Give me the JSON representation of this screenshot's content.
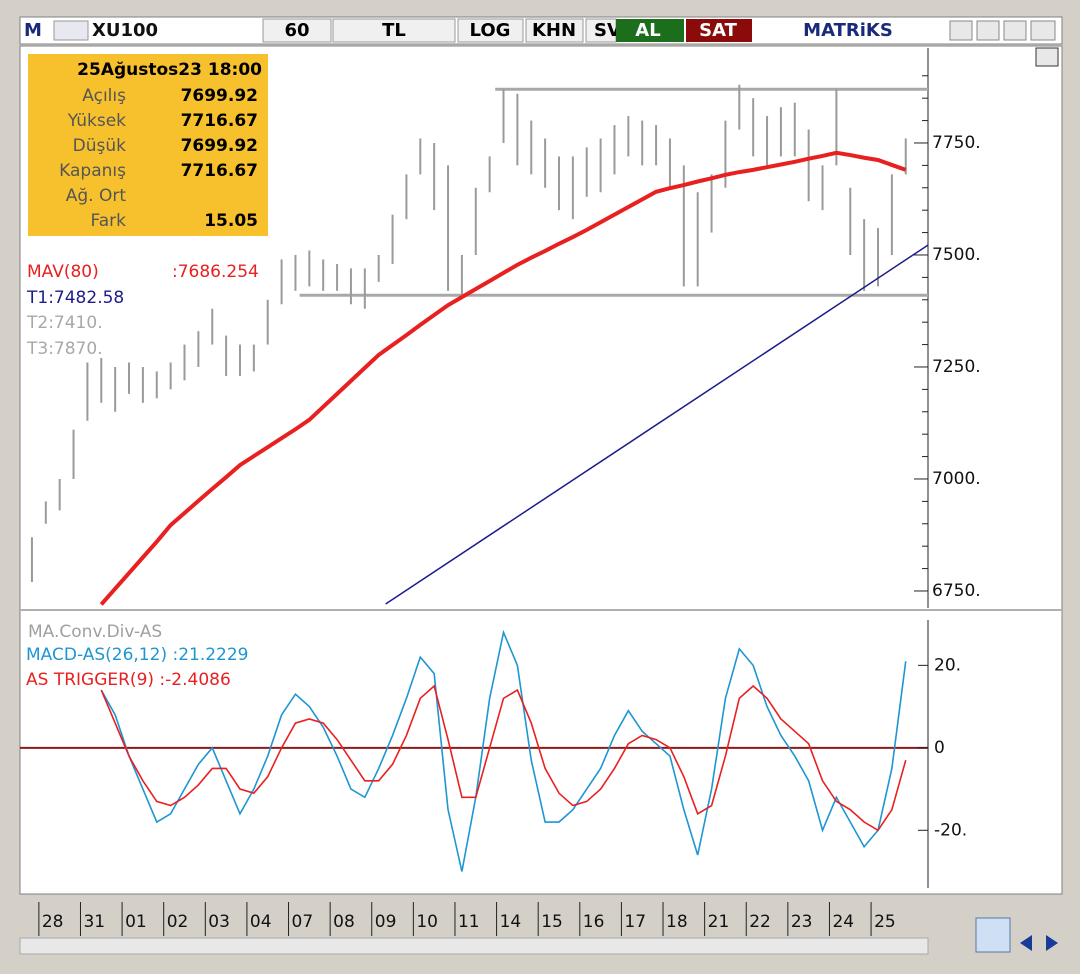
{
  "toolbar": {
    "logo": "M",
    "symbol": "XU100",
    "period": "60",
    "currency": "TL",
    "log": "LOG",
    "khn": "KHN",
    "sv": "SV",
    "buy": "AL",
    "sell": "SAT",
    "brand": "MATRiKS"
  },
  "info": {
    "date": "25Ağustos23 18:00",
    "rows": [
      {
        "label": "Açılış",
        "value": 7699.92
      },
      {
        "label": "Yüksek",
        "value": 7716.67
      },
      {
        "label": "Düşük",
        "value": 7699.92
      },
      {
        "label": "Kapanış",
        "value": 7716.67
      },
      {
        "label": "Ağ. Ort"
      },
      {
        "label": "Fark",
        "value": 15.05
      }
    ]
  },
  "days": [
    "28",
    "31",
    "01",
    "02",
    "03",
    "04",
    "07",
    "08",
    "09",
    "10",
    "11",
    "14",
    "15",
    "16",
    "17",
    "18",
    "21",
    "22",
    "23",
    "24",
    "25"
  ],
  "chart_data": [
    {
      "type": "hlbar",
      "color": "#9a9a9a",
      "high": [
        6870,
        6950,
        7000,
        7110,
        7260,
        7270,
        7250,
        7260,
        7250,
        7240,
        7260,
        7300,
        7330,
        7380,
        7320,
        7300,
        7300,
        7400,
        7490,
        7500,
        7510,
        7490,
        7480,
        7470,
        7470,
        7500,
        7590,
        7680,
        7760,
        7750,
        7700,
        7500,
        7650,
        7720,
        7870,
        7860,
        7800,
        7760,
        7720,
        7720,
        7740,
        7760,
        7790,
        7810,
        7800,
        7790,
        7760,
        7700,
        7640,
        7680,
        7800,
        7880,
        7850,
        7810,
        7830,
        7840,
        7780,
        7700,
        7870,
        7650,
        7580,
        7560,
        7680,
        7760
      ],
      "low": [
        6770,
        6900,
        6930,
        7000,
        7130,
        7170,
        7150,
        7190,
        7170,
        7180,
        7200,
        7220,
        7250,
        7300,
        7230,
        7230,
        7240,
        7300,
        7390,
        7420,
        7430,
        7420,
        7420,
        7390,
        7380,
        7440,
        7480,
        7580,
        7680,
        7600,
        7420,
        7410,
        7500,
        7640,
        7750,
        7700,
        7680,
        7650,
        7600,
        7580,
        7630,
        7640,
        7680,
        7720,
        7700,
        7700,
        7650,
        7430,
        7430,
        7550,
        7650,
        7780,
        7720,
        7700,
        7720,
        7720,
        7620,
        7600,
        7700,
        7500,
        7420,
        7430,
        7500,
        7680
      ],
      "series": [
        {
          "name": "MAV(80)",
          "value_label": ":7686.254",
          "color": "#e82020",
          "values": [
            null,
            null,
            null,
            null,
            null,
            6720,
            6755,
            6790,
            6825,
            6860,
            6897,
            6924,
            6951,
            6978,
            7004,
            7031,
            7051,
            7071,
            7091,
            7111,
            7132,
            7161,
            7190,
            7219,
            7248,
            7277,
            7299,
            7321,
            7344,
            7366,
            7388,
            7406,
            7424,
            7442,
            7460,
            7478,
            7494,
            7509,
            7525,
            7540,
            7556,
            7573,
            7590,
            7607,
            7624,
            7641,
            7649,
            7656,
            7664,
            7671,
            7679,
            7685,
            7690,
            7696,
            7702,
            7708,
            7715,
            7721,
            7728,
            7723,
            7717,
            7712,
            7701,
            7690
          ]
        }
      ],
      "trendline": {
        "label": "T1:7482.58",
        "color": "#1c1c8c",
        "x": [
          25.5,
          64.6
        ],
        "values": [
          6721,
          7522
        ]
      },
      "levels": [
        {
          "label": "T2:7410.",
          "value": 7410,
          "start": 19.3,
          "color": "#a8a8a8"
        },
        {
          "label": "T3:7870.",
          "value": 7870,
          "start": 33.4,
          "color": "#a8a8a8"
        }
      ],
      "ylim": [
        6712,
        7962
      ],
      "yticks": [
        {
          "value": 6750,
          "label": "6750."
        },
        {
          "value": 7000,
          "label": "7000."
        },
        {
          "value": 7250,
          "label": "7250."
        },
        {
          "value": 7500,
          "label": "7500."
        },
        {
          "value": 7750,
          "label": "7750."
        }
      ],
      "yticks_minor": [
        6800,
        6850,
        6900,
        6950,
        7050,
        7100,
        7150,
        7200,
        7300,
        7350,
        7400,
        7450,
        7550,
        7600,
        7650,
        7700,
        7800,
        7850,
        7900
      ]
    },
    {
      "type": "line",
      "title": "MA.Conv.Div-AS",
      "series": [
        {
          "name": "MACD-AS(26,12) :21.2229",
          "color": "#1e96d2",
          "values": [
            null,
            null,
            null,
            null,
            null,
            14,
            8,
            -2,
            -10,
            -18,
            -16,
            -10,
            -4,
            0,
            -8,
            -16,
            -10,
            -2,
            8,
            13,
            10,
            5,
            -2,
            -10,
            -12,
            -5,
            3,
            12,
            22,
            18,
            -15,
            -30,
            -12,
            12,
            28,
            20,
            -3,
            -18,
            -18,
            -15,
            -10,
            -5,
            3,
            9,
            4,
            1,
            -2,
            -15,
            -26,
            -10,
            12,
            24,
            20,
            10,
            3,
            -2,
            -8,
            -20,
            -12,
            -18,
            -24,
            -20,
            -5,
            21
          ]
        },
        {
          "name": "AS TRIGGER(9)  :-2.4086",
          "color": "#e82020",
          "values": [
            null,
            null,
            null,
            null,
            null,
            14,
            6,
            -2,
            -8,
            -13,
            -14,
            -12,
            -9,
            -5,
            -5,
            -10,
            -11,
            -7,
            0,
            6,
            7,
            6,
            2,
            -3,
            -8,
            -8,
            -4,
            3,
            12,
            15,
            2,
            -12,
            -12,
            0,
            12,
            14,
            6,
            -5,
            -11,
            -14,
            -13,
            -10,
            -5,
            1,
            3,
            2,
            0,
            -7,
            -16,
            -14,
            -2,
            12,
            15,
            12,
            7,
            4,
            1,
            -8,
            -13,
            -15,
            -18,
            -20,
            -15,
            -3
          ]
        }
      ],
      "zero_line": 0,
      "zero_color": "#8b1a1a",
      "ylim": [
        -34,
        31
      ],
      "yticks": [
        {
          "value": -20,
          "label": "-20."
        },
        0,
        {
          "value": 20,
          "label": "20."
        }
      ]
    }
  ]
}
